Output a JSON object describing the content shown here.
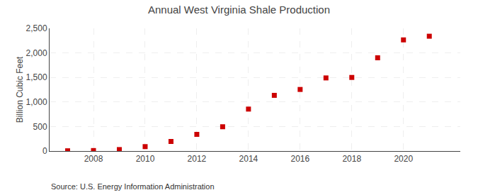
{
  "chart_data": {
    "type": "scatter",
    "title": "Annual West Virginia Shale Production",
    "ylabel": "Billion Cubic Feet",
    "annotations": [
      "Source: U.S. Energy Information Administration"
    ],
    "x": [
      2007,
      2008,
      2009,
      2010,
      2011,
      2012,
      2013,
      2014,
      2015,
      2016,
      2017,
      2018,
      2019,
      2020,
      2021
    ],
    "values": [
      5,
      10,
      30,
      90,
      195,
      340,
      495,
      855,
      1135,
      1255,
      1490,
      1500,
      1900,
      2265,
      2340
    ],
    "color": "#cc0000",
    "marker": "square",
    "xlim": [
      2006.3,
      2022.2
    ],
    "xticks": [
      2008,
      2010,
      2012,
      2014,
      2016,
      2018,
      2020
    ],
    "ylim": [
      0,
      2500
    ],
    "yticks": [
      0,
      500,
      {
        "value": 1000,
        "label": "1,000"
      },
      {
        "value": 1500,
        "label": "1,500"
      },
      {
        "value": 2000,
        "label": "2,000"
      },
      {
        "value": 2500,
        "label": "2,500"
      }
    ],
    "grid": true
  }
}
